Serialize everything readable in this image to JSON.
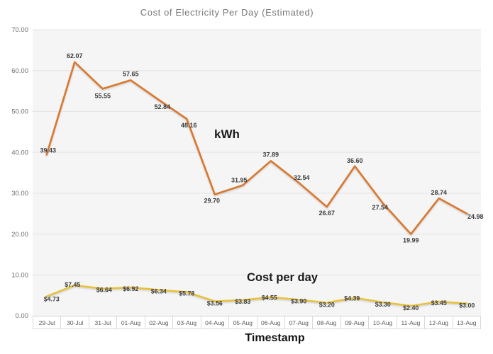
{
  "chart_data": {
    "type": "line",
    "title": "Cost of Electricity Per Day (Estimated)",
    "xlabel": "Timestamp",
    "ylabel": "",
    "ylim": [
      0,
      70
    ],
    "grid": true,
    "legend_position": "inline-annotations",
    "ytick_labels": [
      "0.00",
      "10.00",
      "20.00",
      "30.00",
      "40.00",
      "50.00",
      "60.00",
      "70.00"
    ],
    "categories": [
      "29-Jul",
      "30-Jul",
      "31-Jul",
      "01-Aug",
      "02-Aug",
      "03-Aug",
      "04-Aug",
      "05-Aug",
      "06-Aug",
      "07-Aug",
      "08-Aug",
      "09-Aug",
      "10-Aug",
      "11-Aug",
      "12-Aug",
      "13-Aug"
    ],
    "series": [
      {
        "name": "kWh",
        "color": "#D9782F",
        "values": [
          39.43,
          62.07,
          55.55,
          57.65,
          52.84,
          48.16,
          29.7,
          31.95,
          37.89,
          32.54,
          26.67,
          36.6,
          27.54,
          19.99,
          28.74,
          24.98
        ],
        "labels": [
          "39.43",
          "62.07",
          "55.55",
          "57.65",
          "52.84",
          "48.16",
          "29.70",
          "31.95",
          "37.89",
          "32.54",
          "26.67",
          "36.60",
          "27.54",
          "19.99",
          "28.74",
          "24.98"
        ]
      },
      {
        "name": "Cost per day",
        "color": "#E8C13E",
        "values": [
          4.73,
          7.45,
          6.64,
          6.92,
          6.34,
          5.78,
          3.56,
          3.83,
          4.55,
          3.9,
          3.2,
          4.39,
          3.3,
          2.4,
          3.45,
          3.0
        ],
        "labels": [
          "$4.73",
          "$7.45",
          "$6.64",
          "$6.92",
          "$6.34",
          "$5.78",
          "$3.56",
          "$3.83",
          "$4.55",
          "$3.90",
          "$3.20",
          "$4.39",
          "$3.30",
          "$2.40",
          "$3.45",
          "$3.00"
        ]
      }
    ],
    "annotations": [
      {
        "text": "kWh"
      },
      {
        "text": "Cost per day"
      }
    ]
  }
}
